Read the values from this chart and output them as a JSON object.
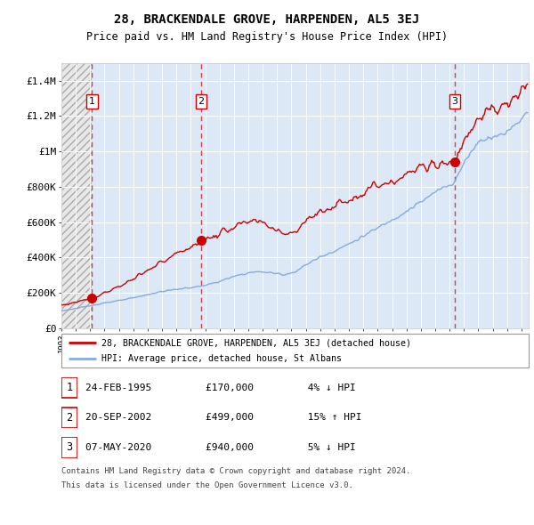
{
  "title": "28, BRACKENDALE GROVE, HARPENDEN, AL5 3EJ",
  "subtitle": "Price paid vs. HM Land Registry's House Price Index (HPI)",
  "legend_line1": "28, BRACKENDALE GROVE, HARPENDEN, AL5 3EJ (detached house)",
  "legend_line2": "HPI: Average price, detached house, St Albans",
  "footnote1": "Contains HM Land Registry data © Crown copyright and database right 2024.",
  "footnote2": "This data is licensed under the Open Government Licence v3.0.",
  "transactions": [
    {
      "num": 1,
      "date": "24-FEB-1995",
      "price": 170000,
      "pct": "4%",
      "dir": "↓",
      "x": 1995.13
    },
    {
      "num": 2,
      "date": "20-SEP-2002",
      "price": 499000,
      "pct": "15%",
      "dir": "↑",
      "x": 2002.72
    },
    {
      "num": 3,
      "date": "07-MAY-2020",
      "price": 940000,
      "pct": "5%",
      "dir": "↓",
      "x": 2020.35
    }
  ],
  "ylabel_ticks": [
    "£0",
    "£200K",
    "£400K",
    "£600K",
    "£800K",
    "£1M",
    "£1.2M",
    "£1.4M"
  ],
  "ytick_values": [
    0,
    200000,
    400000,
    600000,
    800000,
    1000000,
    1200000,
    1400000
  ],
  "ylim": [
    0,
    1500000
  ],
  "xlim_left": 1993.0,
  "xlim_right": 2025.5,
  "property_color": "#cc0000",
  "hpi_color": "#88aadd",
  "dashed_line_color": "#cc4444",
  "background_plot": "#dce8f5",
  "background_fig": "#ffffff",
  "grid_color": "#ffffff",
  "hatch_bg": "#e8e8e8"
}
